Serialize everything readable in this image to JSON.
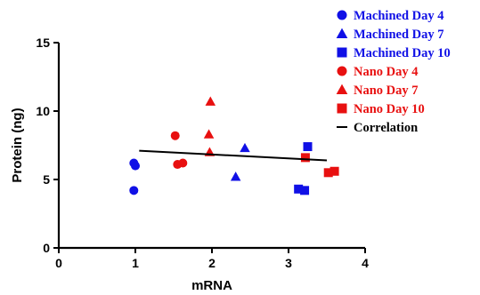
{
  "chart_data": {
    "type": "scatter",
    "xlabel": "mRNA",
    "ylabel": "Protein (ng)",
    "xlim": [
      0,
      4
    ],
    "ylim": [
      0,
      15
    ],
    "xticks": [
      "0",
      "1",
      "2",
      "3",
      "4"
    ],
    "yticks": [
      "0",
      "5",
      "10",
      "15"
    ],
    "grid": false,
    "legend_position": "top-right",
    "series": [
      {
        "name": "Machined Day 4",
        "color": "#1010e6",
        "marker": "circle",
        "points": [
          [
            0.98,
            6.2
          ],
          [
            1.0,
            6.0
          ],
          [
            0.98,
            4.2
          ]
        ]
      },
      {
        "name": "Machined Day 7",
        "color": "#1010e6",
        "marker": "triangle",
        "points": [
          [
            2.43,
            7.3
          ],
          [
            2.31,
            5.2
          ]
        ]
      },
      {
        "name": "Machined Day 10",
        "color": "#1010e6",
        "marker": "square",
        "points": [
          [
            3.25,
            7.4
          ],
          [
            3.13,
            4.3
          ],
          [
            3.21,
            4.2
          ]
        ]
      },
      {
        "name": "Nano Day 4",
        "color": "#e81010",
        "marker": "circle",
        "points": [
          [
            1.52,
            8.2
          ],
          [
            1.55,
            6.1
          ],
          [
            1.62,
            6.2
          ]
        ]
      },
      {
        "name": "Nano Day 7",
        "color": "#e81010",
        "marker": "triangle",
        "points": [
          [
            1.98,
            10.7
          ],
          [
            1.96,
            8.3
          ],
          [
            1.97,
            7.0
          ]
        ]
      },
      {
        "name": "Nano Day 10",
        "color": "#e81010",
        "marker": "square",
        "points": [
          [
            3.22,
            6.6
          ],
          [
            3.52,
            5.5
          ],
          [
            3.6,
            5.6
          ]
        ]
      },
      {
        "name": "Correlation",
        "color": "#000000",
        "marker": "line",
        "points": [
          [
            1.05,
            7.1
          ],
          [
            3.5,
            6.4
          ]
        ]
      }
    ]
  }
}
